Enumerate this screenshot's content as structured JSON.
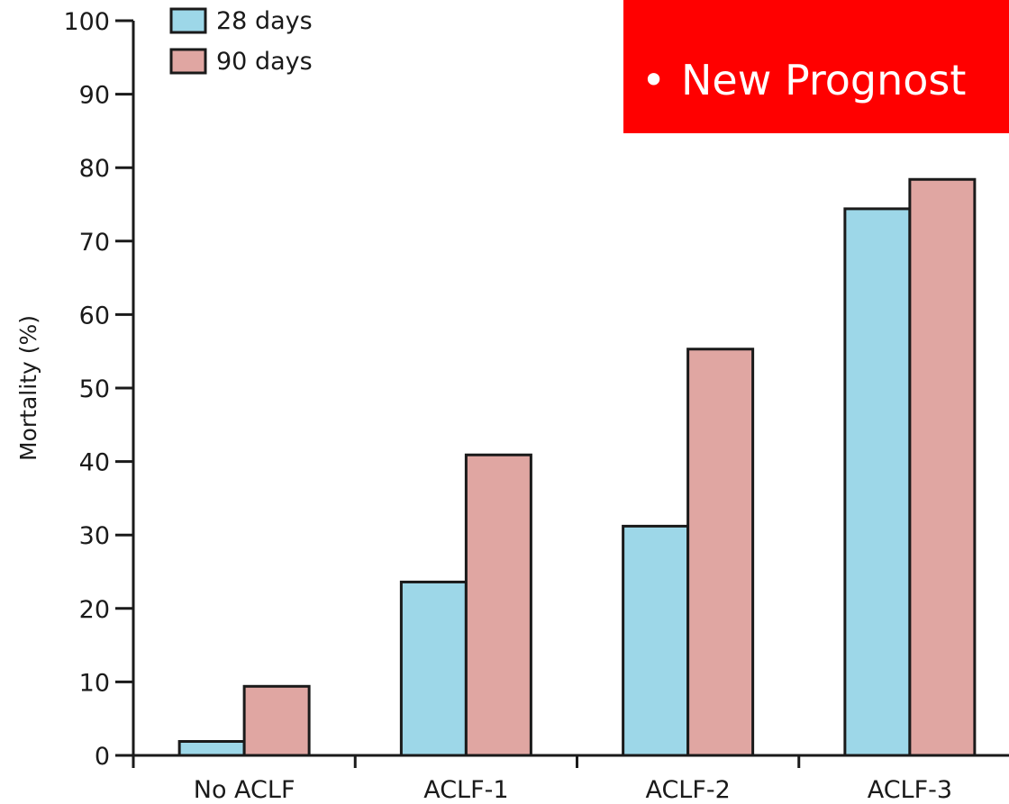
{
  "chart_data": {
    "type": "bar",
    "categories": [
      "No ACLF",
      "ACLF-1",
      "ACLF-2",
      "ACLF-3"
    ],
    "series": [
      {
        "name": "28 days",
        "values": [
          1.9,
          23.6,
          31.2,
          74.4
        ],
        "color": "#9dd7e8"
      },
      {
        "name": "90 days",
        "values": [
          9.4,
          40.9,
          55.3,
          78.4
        ],
        "color": "#e0a6a2"
      }
    ],
    "xlabel": "",
    "ylabel": "Mortality (%)",
    "ylim": [
      0,
      100
    ],
    "yticks": [
      0,
      10,
      20,
      30,
      40,
      50,
      60,
      70,
      80,
      90,
      100
    ],
    "legend_position": "top-left",
    "grid": false
  },
  "banner": {
    "bullet": "•",
    "text": "New Prognost",
    "color": "#ff0000"
  }
}
